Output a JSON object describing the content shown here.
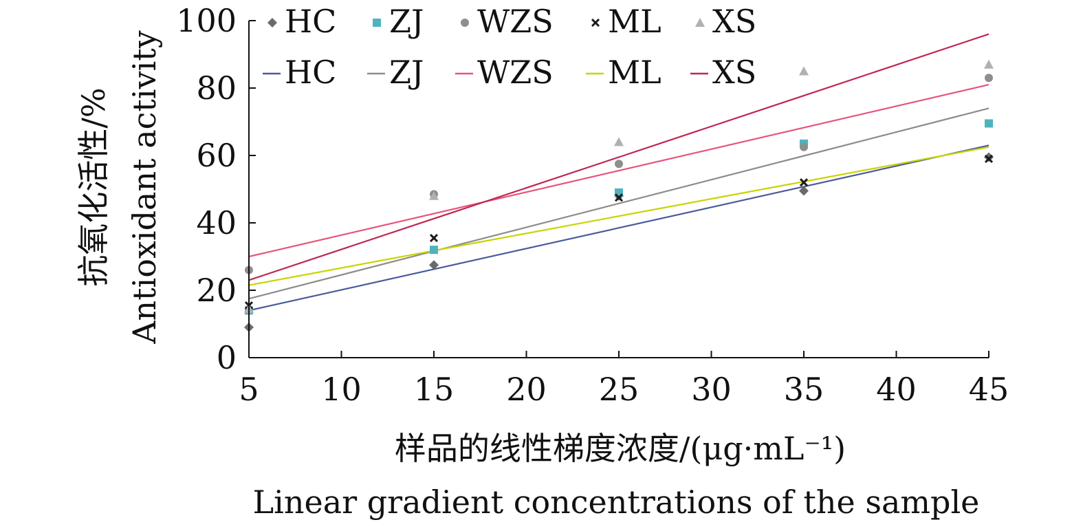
{
  "chart_data": {
    "type": "scatter",
    "title": "",
    "xlabel_cn": "样品的线性梯度浓度/(μg·mL⁻¹)",
    "xlabel_en": "Linear gradient concentrations of the sample",
    "ylabel_cn": "抗氧化活性/%",
    "ylabel_en": "Antioxidant activity",
    "xlim": [
      5,
      45
    ],
    "ylim": [
      0,
      100
    ],
    "x_ticks": [
      "5",
      "10",
      "15",
      "20",
      "25",
      "30",
      "35",
      "40",
      "45"
    ],
    "y_ticks": [
      "0",
      "20",
      "40",
      "60",
      "80",
      "100"
    ],
    "grid": false,
    "legend_position": "top",
    "x": [
      5,
      15,
      25,
      35,
      45
    ],
    "series": [
      {
        "name": "HC",
        "marker": "diamond",
        "marker_color": "#6b6b6b",
        "line_color": "#4a5a9c",
        "values": [
          9,
          27.5,
          48,
          49.5,
          59.5
        ],
        "fit": [
          14,
          63
        ]
      },
      {
        "name": "ZJ",
        "marker": "square",
        "marker_color": "#4fb3bf",
        "line_color": "#8c8c8c",
        "values": [
          14,
          32,
          49,
          63.5,
          69.5
        ],
        "fit": [
          17.5,
          74
        ]
      },
      {
        "name": "WZS",
        "marker": "circle",
        "marker_color": "#8e8e8e",
        "line_color": "#e8537a",
        "values": [
          26,
          48.5,
          57.5,
          62.5,
          83
        ],
        "fit": [
          30,
          81
        ]
      },
      {
        "name": "ML",
        "marker": "x",
        "marker_color": "#1a1a1a",
        "line_color": "#c8d400",
        "values": [
          15.5,
          35.5,
          47.5,
          52,
          59
        ],
        "fit": [
          21.5,
          62.5
        ]
      },
      {
        "name": "XS",
        "marker": "triangle",
        "marker_color": "#b0b0b0",
        "line_color": "#c0264f",
        "values": [
          14.5,
          48,
          64,
          85,
          87
        ],
        "fit": [
          23,
          96
        ]
      }
    ],
    "legend_marker_labels": [
      "HC",
      "ZJ",
      "WZS",
      "ML",
      "XS"
    ],
    "legend_line_labels": [
      "HC",
      "ZJ",
      "WZS",
      "ML",
      "XS"
    ]
  }
}
